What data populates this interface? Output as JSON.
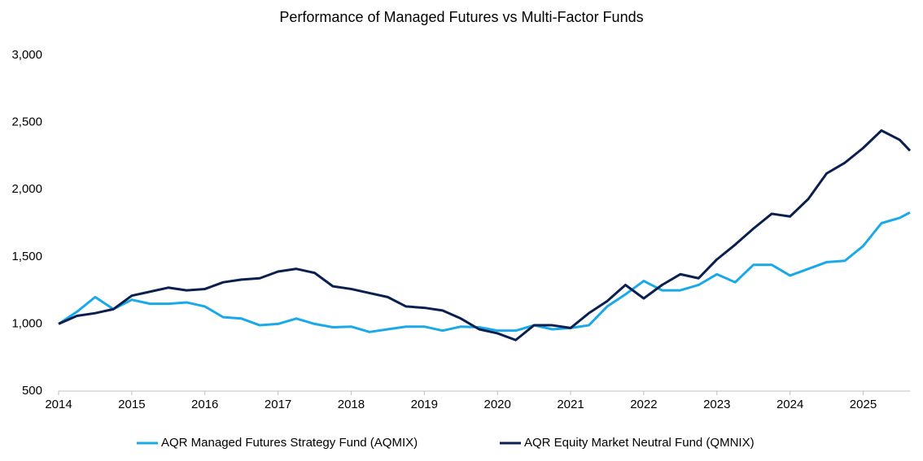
{
  "chart_data": {
    "type": "line",
    "title": "Performance of Managed Futures vs Multi-Factor Funds",
    "x": [
      2014,
      2014.25,
      2014.5,
      2014.75,
      2015,
      2015.25,
      2015.5,
      2015.75,
      2016,
      2016.25,
      2016.5,
      2016.75,
      2017,
      2017.25,
      2017.5,
      2017.75,
      2018,
      2018.25,
      2018.5,
      2018.75,
      2019,
      2019.25,
      2019.5,
      2019.75,
      2020,
      2020.25,
      2020.5,
      2020.75,
      2021,
      2021.25,
      2021.5,
      2021.75,
      2022,
      2022.25,
      2022.5,
      2022.75,
      2023,
      2023.25,
      2023.5,
      2023.75,
      2024,
      2024.25,
      2024.5,
      2024.75,
      2025,
      2025.25,
      2025.5,
      2025.64
    ],
    "series": [
      {
        "name": "AQR Managed Futures Strategy Fund (AQMIX)",
        "color": "#1aa9e8",
        "values": [
          1000,
          1090,
          1200,
          1110,
          1180,
          1150,
          1150,
          1160,
          1130,
          1050,
          1040,
          990,
          1000,
          1040,
          1000,
          975,
          980,
          940,
          960,
          980,
          980,
          950,
          980,
          975,
          950,
          950,
          990,
          960,
          970,
          990,
          1130,
          1220,
          1320,
          1250,
          1250,
          1290,
          1370,
          1310,
          1440,
          1440,
          1360,
          1410,
          1460,
          1470,
          1580,
          1750,
          1790,
          1830
        ]
      },
      {
        "name": "AQR Equity Market Neutral Fund (QMNIX)",
        "color": "#0b1f4f",
        "values": [
          1000,
          1060,
          1080,
          1110,
          1210,
          1240,
          1270,
          1250,
          1260,
          1310,
          1330,
          1340,
          1390,
          1410,
          1380,
          1280,
          1260,
          1230,
          1200,
          1130,
          1120,
          1100,
          1040,
          960,
          930,
          880,
          990,
          990,
          970,
          1080,
          1170,
          1290,
          1190,
          1290,
          1370,
          1340,
          1480,
          1590,
          1710,
          1820,
          1800,
          1930,
          2120,
          2200,
          2310,
          2440,
          2370,
          2290
        ]
      }
    ],
    "xlim": [
      2014,
      2025.64
    ],
    "xticks": [
      2014,
      2015,
      2016,
      2017,
      2018,
      2019,
      2020,
      2021,
      2022,
      2023,
      2024,
      2025
    ],
    "ylim": [
      500,
      3000
    ],
    "yticks": [
      {
        "value": 500,
        "label": "500"
      },
      {
        "value": 1000,
        "label": "1,000"
      },
      {
        "value": 1500,
        "label": "1,500"
      },
      {
        "value": 2000,
        "label": "2,000"
      },
      {
        "value": 2500,
        "label": "2,500"
      },
      {
        "value": 3000,
        "label": "3,000"
      }
    ],
    "grid": false,
    "legend": "bottom"
  }
}
